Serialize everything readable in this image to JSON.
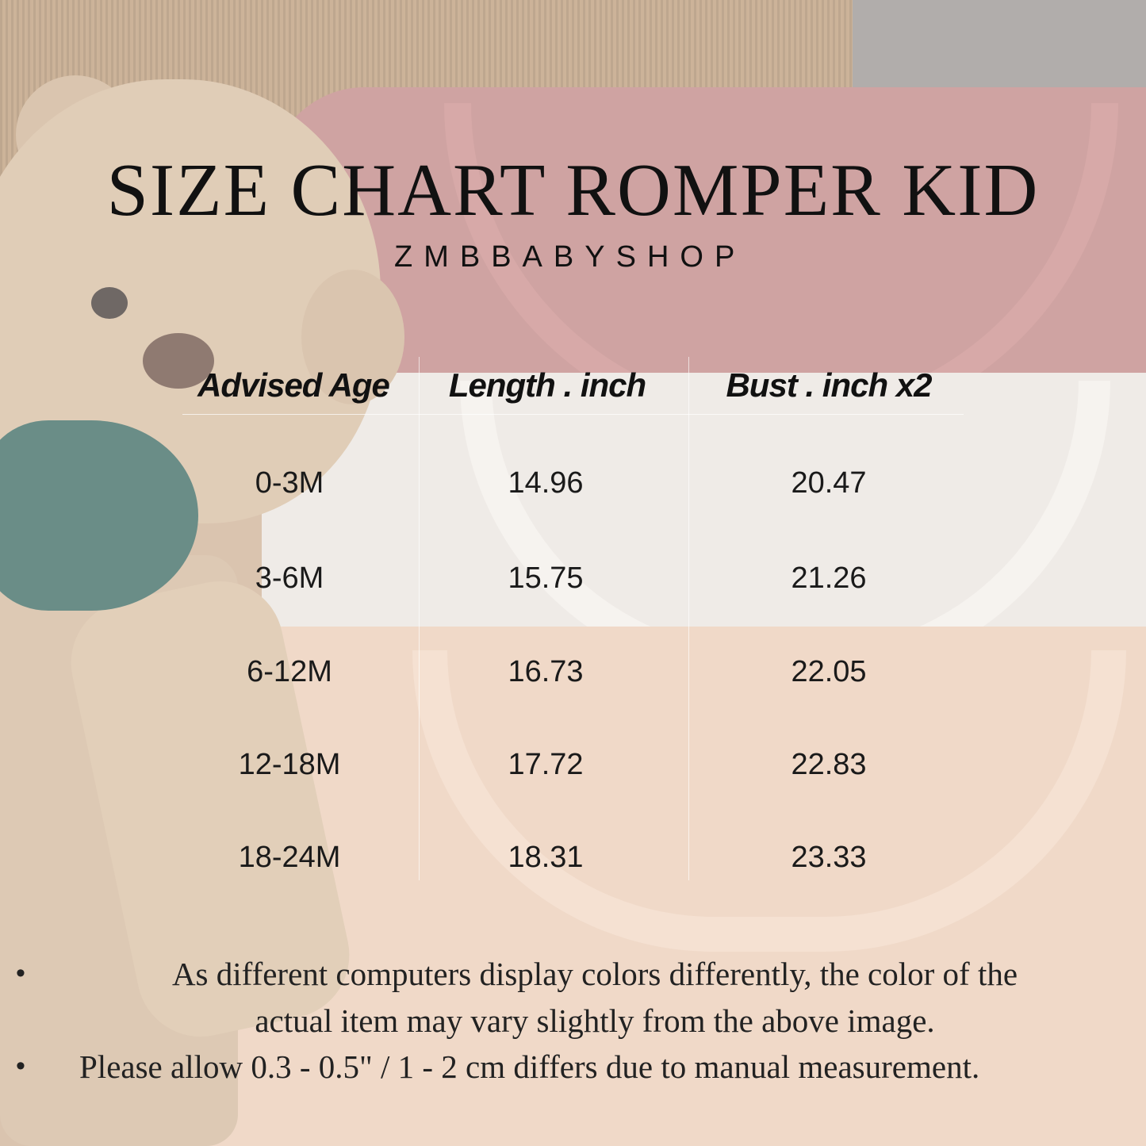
{
  "title": "SIZE CHART ROMPER KID",
  "brand": "ZMBBABYSHOP",
  "table": {
    "headers": [
      "Advised Age",
      "Length . inch",
      "Bust . inch x2"
    ],
    "rows": [
      [
        "0-3M",
        "14.96",
        "20.47"
      ],
      [
        "3-6M",
        "15.75",
        "21.26"
      ],
      [
        "6-12M",
        "16.73",
        "22.05"
      ],
      [
        "12-18M",
        "17.72",
        "22.83"
      ],
      [
        "18-24M",
        "18.31",
        "23.33"
      ]
    ]
  },
  "notes": {
    "bullet": "•",
    "note1_line1": "As different computers display colors differently, the color of the",
    "note1_line2": "actual item may vary slightly from the above image.",
    "note2": "Please allow 0.3 - 0.5\" / 1 - 2 cm differs due to manual measurement."
  }
}
